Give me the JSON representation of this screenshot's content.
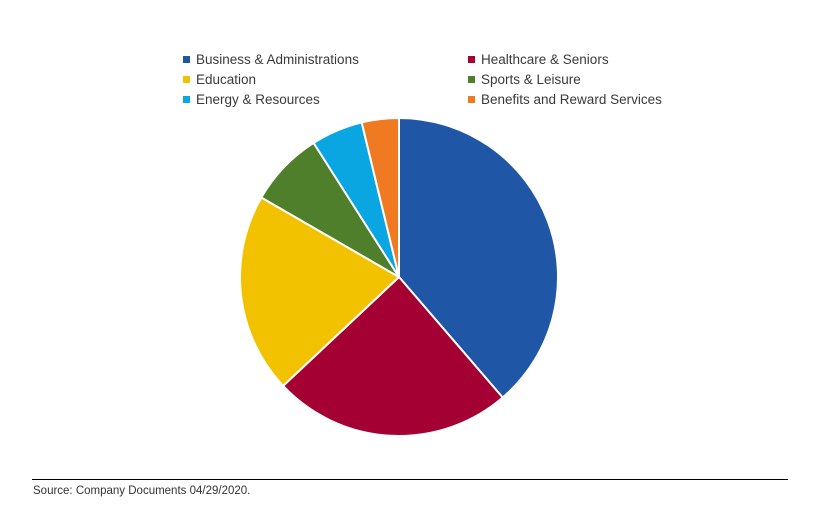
{
  "chart_data": {
    "type": "pie",
    "title": "",
    "slices": [
      {
        "label": "Business & Administrations",
        "value": 39,
        "color": "#1f56a6"
      },
      {
        "label": "Healthcare & Seniors",
        "value": 24.5,
        "color": "#a50034"
      },
      {
        "label": "Education",
        "value": 20.5,
        "color": "#f2c200"
      },
      {
        "label": "Sports & Leisure",
        "value": 7.7,
        "color": "#4f7f2a"
      },
      {
        "label": "Energy & Resources",
        "value": 5.3,
        "color": "#0aa6e2"
      },
      {
        "label": "Benefits and Reward Services",
        "value": 3.8,
        "color": "#f07a21"
      }
    ],
    "legend_order": [
      0,
      1,
      2,
      3,
      4,
      5
    ],
    "legend_position": "top",
    "start_angle": "12 o'clock",
    "direction": "clockwise"
  },
  "source": "Source: Company Documents 04/29/2020."
}
